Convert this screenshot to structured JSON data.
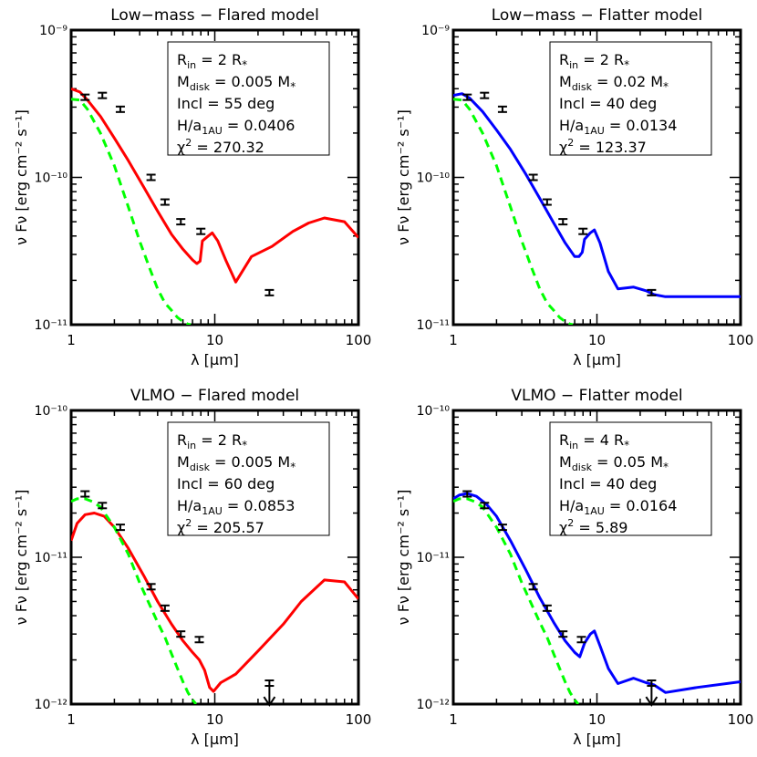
{
  "chart_data": [
    {
      "type": "line",
      "title": "Low−mass − Flared model",
      "xlabel": "λ [μm]",
      "ylabel": "ν Fν [erg cm⁻² s⁻¹]",
      "xscale": "log",
      "yscale": "log",
      "xlim": [
        1,
        100
      ],
      "ylim": [
        1e-11,
        1e-09
      ],
      "x_ticks": [
        "1",
        "10",
        "100"
      ],
      "y_ticks": [
        "10⁻¹¹",
        "10⁻¹⁰",
        "10⁻⁹"
      ],
      "params": {
        "rin": "2",
        "mdisk": "0.005",
        "incl": "55",
        "h": "0.0406",
        "chi2": "270.32"
      },
      "series": [
        {
          "style": "solid",
          "color": "#ff0000",
          "x": [
            1.0,
            1.15,
            1.3,
            1.6,
            2.0,
            2.5,
            3.2,
            4.0,
            5.0,
            6.0,
            7.0,
            7.5,
            7.9,
            8.2,
            9.0,
            9.6,
            10.5,
            12.0,
            14.0,
            18.0,
            25.0,
            35.0,
            45.0,
            58.0,
            80.0,
            100.0
          ],
          "y": [
            4e-10,
            3.8e-10,
            3.35e-10,
            2.6e-10,
            1.85e-10,
            1.3e-10,
            8.6e-11,
            5.9e-11,
            4.1e-11,
            3.25e-11,
            2.75e-11,
            2.6e-11,
            2.7e-11,
            3.7e-11,
            4e-11,
            4.2e-11,
            3.7e-11,
            2.7e-11,
            1.95e-11,
            2.9e-11,
            3.4e-11,
            4.3e-11,
            4.9e-11,
            5.3e-11,
            5e-11,
            3.9e-11
          ]
        },
        {
          "style": "dashed",
          "color": "#00ff00",
          "x": [
            1.0,
            1.15,
            1.3,
            1.6,
            2.0,
            2.5,
            3.0,
            3.5,
            4.0,
            4.5,
            5.0,
            5.5,
            6.0,
            6.5,
            6.8
          ],
          "y": [
            3.4e-10,
            3.35e-10,
            2.9e-10,
            2e-10,
            1.2e-10,
            6.3e-11,
            3.7e-11,
            2.45e-11,
            1.75e-11,
            1.4e-11,
            1.25e-11,
            1.12e-11,
            1.05e-11,
            1.01e-11,
            1e-11
          ]
        }
      ],
      "points": {
        "x": [
          1.25,
          1.65,
          2.2,
          3.6,
          4.5,
          5.8,
          8.0,
          24.0
        ],
        "y": [
          3.5e-10,
          3.6e-10,
          2.9e-10,
          1e-10,
          6.8e-11,
          5e-11,
          4.3e-11,
          1.65e-11
        ],
        "upper_limit": [
          false,
          false,
          false,
          false,
          false,
          false,
          false,
          false
        ]
      }
    },
    {
      "type": "line",
      "title": "Low−mass − Flatter model",
      "xlabel": "λ [μm]",
      "ylabel": "ν Fν [erg cm⁻² s⁻¹]",
      "xscale": "log",
      "yscale": "log",
      "xlim": [
        1,
        100
      ],
      "ylim": [
        1e-11,
        1e-09
      ],
      "x_ticks": [
        "1",
        "10",
        "100"
      ],
      "y_ticks": [
        "10⁻¹¹",
        "10⁻¹⁰",
        "10⁻⁹"
      ],
      "params": {
        "rin": "2",
        "mdisk": "0.02",
        "incl": "40",
        "h": "0.0134",
        "chi2": "123.37"
      },
      "series": [
        {
          "style": "solid",
          "color": "#0000ff",
          "x": [
            1.0,
            1.15,
            1.3,
            1.6,
            2.0,
            2.5,
            3.2,
            4.0,
            5.0,
            6.0,
            7.0,
            7.5,
            7.9,
            8.2,
            9.0,
            9.6,
            10.5,
            12.0,
            14.0,
            18.0,
            22.0,
            25.0,
            30.0,
            50.0,
            100.0
          ],
          "y": [
            3.6e-10,
            3.7e-10,
            3.45e-10,
            2.8e-10,
            2.1e-10,
            1.55e-10,
            1.05e-10,
            7.2e-11,
            4.9e-11,
            3.6e-11,
            2.9e-11,
            2.9e-11,
            3.1e-11,
            3.8e-11,
            4.2e-11,
            4.4e-11,
            3.6e-11,
            2.3e-11,
            1.75e-11,
            1.8e-11,
            1.7e-11,
            1.6e-11,
            1.55e-11,
            1.55e-11,
            1.55e-11
          ]
        },
        {
          "style": "dashed",
          "color": "#00ff00",
          "x": [
            1.0,
            1.15,
            1.3,
            1.6,
            2.0,
            2.5,
            3.0,
            3.5,
            4.0,
            4.5,
            5.0,
            5.5,
            6.0,
            6.5,
            6.8
          ],
          "y": [
            3.4e-10,
            3.35e-10,
            2.9e-10,
            2e-10,
            1.2e-10,
            6.3e-11,
            3.7e-11,
            2.45e-11,
            1.75e-11,
            1.4e-11,
            1.25e-11,
            1.12e-11,
            1.05e-11,
            1.01e-11,
            1e-11
          ]
        }
      ],
      "points": {
        "x": [
          1.25,
          1.65,
          2.2,
          3.6,
          4.5,
          5.8,
          8.0,
          24.0
        ],
        "y": [
          3.5e-10,
          3.6e-10,
          2.9e-10,
          1e-10,
          6.8e-11,
          5e-11,
          4.3e-11,
          1.65e-11
        ],
        "upper_limit": [
          false,
          false,
          false,
          false,
          false,
          false,
          false,
          false
        ]
      }
    },
    {
      "type": "line",
      "title": "VLMO − Flared model",
      "xlabel": "λ [μm]",
      "ylabel": "ν Fν [erg cm⁻² s⁻¹]",
      "xscale": "log",
      "yscale": "log",
      "xlim": [
        1,
        100
      ],
      "ylim": [
        1e-12,
        1e-10
      ],
      "x_ticks": [
        "1",
        "10",
        "100"
      ],
      "y_ticks": [
        "10⁻¹²",
        "10⁻¹¹",
        "10⁻¹⁰"
      ],
      "params": {
        "rin": "2",
        "mdisk": "0.005",
        "incl": "60",
        "h": "0.0853",
        "chi2": "205.57"
      },
      "series": [
        {
          "style": "solid",
          "color": "#ff0000",
          "x": [
            1.0,
            1.1,
            1.25,
            1.45,
            1.7,
            2.0,
            2.5,
            3.2,
            4.0,
            5.0,
            6.0,
            7.0,
            7.8,
            8.5,
            9.2,
            9.8,
            11.0,
            14.0,
            20.0,
            30.0,
            40.0,
            58.0,
            80.0,
            100.0
          ],
          "y": [
            1.3e-11,
            1.7e-11,
            1.95e-11,
            2e-11,
            1.9e-11,
            1.6e-11,
            1.15e-11,
            7.5e-12,
            5e-12,
            3.5e-12,
            2.7e-12,
            2.25e-12,
            2e-12,
            1.7e-12,
            1.3e-12,
            1.22e-12,
            1.4e-12,
            1.6e-12,
            2.3e-12,
            3.5e-12,
            5e-12,
            7e-12,
            6.8e-12,
            5.2e-12
          ]
        },
        {
          "style": "dashed",
          "color": "#00ff00",
          "x": [
            1.0,
            1.1,
            1.25,
            1.4,
            1.6,
            2.0,
            2.5,
            3.0,
            3.5,
            4.0,
            4.5,
            5.0,
            5.5,
            6.0,
            6.5,
            7.0,
            7.4
          ],
          "y": [
            2.4e-11,
            2.5e-11,
            2.5e-11,
            2.4e-11,
            2.2e-11,
            1.6e-11,
            1.05e-11,
            6.7e-12,
            4.8e-12,
            3.6e-12,
            2.85e-12,
            2.2e-12,
            1.75e-12,
            1.42e-12,
            1.2e-12,
            1.07e-12,
            1e-12
          ]
        }
      ],
      "points": {
        "x": [
          1.25,
          1.65,
          2.2,
          3.6,
          4.5,
          5.8,
          7.8,
          24.0
        ],
        "y": [
          2.7e-11,
          2.25e-11,
          1.6e-11,
          6.3e-12,
          4.5e-12,
          3e-12,
          2.75e-12,
          1.45e-12
        ],
        "upper_limit": [
          false,
          false,
          false,
          false,
          false,
          false,
          false,
          true
        ]
      }
    },
    {
      "type": "line",
      "title": "VLMO − Flatter model",
      "xlabel": "λ [μm]",
      "ylabel": "ν Fν [erg cm⁻² s⁻¹]",
      "xscale": "log",
      "yscale": "log",
      "xlim": [
        1,
        100
      ],
      "ylim": [
        1e-12,
        1e-10
      ],
      "x_ticks": [
        "1",
        "10",
        "100"
      ],
      "y_ticks": [
        "10⁻¹²",
        "10⁻¹¹",
        "10⁻¹⁰"
      ],
      "params": {
        "rin": "4",
        "mdisk": "0.05",
        "incl": "40",
        "h": "0.0164",
        "chi2": "5.89"
      },
      "series": [
        {
          "style": "solid",
          "color": "#0000ff",
          "x": [
            1.0,
            1.1,
            1.25,
            1.45,
            1.7,
            2.0,
            2.5,
            3.2,
            4.0,
            5.0,
            6.0,
            7.0,
            7.6,
            8.2,
            9.0,
            9.6,
            10.5,
            12.0,
            14.0,
            18.0,
            22.0,
            25.0,
            30.0,
            50.0,
            100.0
          ],
          "y": [
            2.5e-11,
            2.65e-11,
            2.72e-11,
            2.6e-11,
            2.3e-11,
            1.9e-11,
            1.3e-11,
            8.2e-12,
            5.3e-12,
            3.6e-12,
            2.7e-12,
            2.25e-12,
            2.1e-12,
            2.6e-12,
            3e-12,
            3.15e-12,
            2.5e-12,
            1.75e-12,
            1.38e-12,
            1.5e-12,
            1.4e-12,
            1.35e-12,
            1.2e-12,
            1.3e-12,
            1.42e-12
          ]
        },
        {
          "style": "dashed",
          "color": "#00ff00",
          "x": [
            1.0,
            1.1,
            1.25,
            1.4,
            1.6,
            2.0,
            2.5,
            3.0,
            3.5,
            4.0,
            4.5,
            5.0,
            5.5,
            6.0,
            6.5,
            7.0,
            7.4
          ],
          "y": [
            2.4e-11,
            2.5e-11,
            2.5e-11,
            2.4e-11,
            2.2e-11,
            1.6e-11,
            1.05e-11,
            6.7e-12,
            4.8e-12,
            3.6e-12,
            2.85e-12,
            2.2e-12,
            1.75e-12,
            1.42e-12,
            1.2e-12,
            1.07e-12,
            1e-12
          ]
        }
      ],
      "points": {
        "x": [
          1.25,
          1.65,
          2.2,
          3.6,
          4.5,
          5.8,
          7.8,
          24.0
        ],
        "y": [
          2.7e-11,
          2.25e-11,
          1.6e-11,
          6.3e-12,
          4.5e-12,
          3e-12,
          2.75e-12,
          1.45e-12
        ],
        "upper_limit": [
          false,
          false,
          false,
          false,
          false,
          false,
          false,
          true
        ]
      }
    }
  ]
}
